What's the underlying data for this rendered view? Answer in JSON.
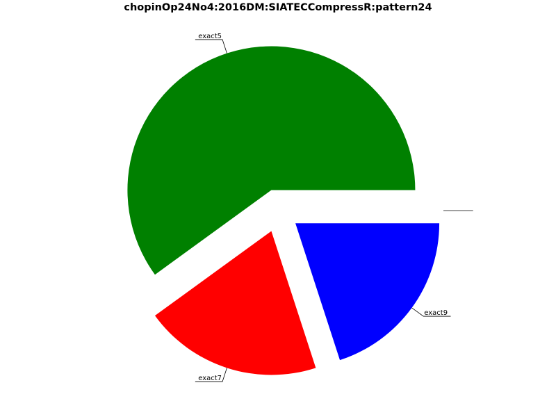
{
  "chart_data": {
    "type": "pie",
    "title": "chopinOp24No4:2016DM:SIATECCompressR:pattern24",
    "slices": [
      {
        "label": "exact5",
        "value": 0.6,
        "color": "#008000"
      },
      {
        "label": "exact7",
        "value": 0.2,
        "color": "#ff0000"
      },
      {
        "label": "exact9",
        "value": 0.2,
        "color": "#0000ff"
      },
      {
        "label": "",
        "value": 0.0,
        "color": "#ffffff"
      }
    ],
    "start_angle_deg": 0,
    "direction": "counterclockwise",
    "exploded": true,
    "legend": "none"
  }
}
